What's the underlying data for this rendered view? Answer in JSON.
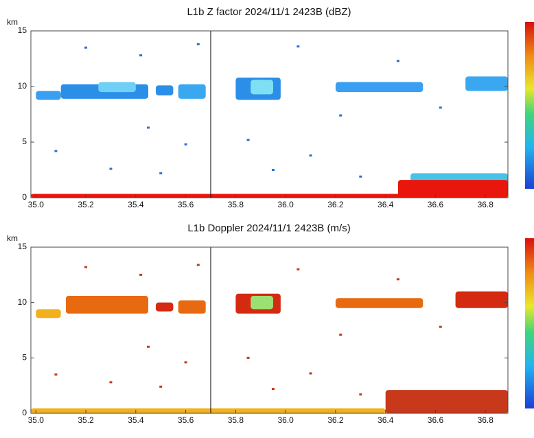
{
  "chart_data": [
    {
      "type": "heatmap",
      "title": "L1b Z factor 2024/11/1 2423B (dBZ)",
      "y_unit": "km",
      "xlim": [
        34.98,
        36.89
      ],
      "ylim": [
        0,
        15
      ],
      "xticks": [
        {
          "value": 35.0,
          "label": "35.0"
        },
        35.2,
        35.4,
        35.6,
        35.8,
        {
          "value": 36.0,
          "label": "36.0"
        },
        36.2,
        36.4,
        36.6,
        36.8
      ],
      "yticks": [
        0,
        5,
        10,
        15
      ],
      "marker_x": 35.7,
      "cells": {
        "x0": [
          35.0,
          35.1,
          35.25,
          35.48,
          35.57,
          35.8,
          35.86,
          36.2,
          36.72,
          34.98,
          36.5,
          36.45
        ],
        "x1": [
          35.1,
          35.45,
          35.4,
          35.55,
          35.68,
          35.98,
          35.95,
          36.55,
          36.89,
          36.5,
          36.89,
          36.89
        ],
        "y0": [
          8.8,
          8.9,
          9.5,
          9.2,
          8.9,
          8.8,
          9.3,
          9.5,
          9.6,
          0,
          0,
          0
        ],
        "y1": [
          9.6,
          10.2,
          10.4,
          10.1,
          10.2,
          10.8,
          10.6,
          10.4,
          10.9,
          0.35,
          2.2,
          1.6
        ],
        "color": [
          "#3a9ff0",
          "#2b8fe8",
          "#6fd0f5",
          "#2b8fe8",
          "#3aa8f0",
          "#2b8fe8",
          "#7fe0f5",
          "#3a9ff0",
          "#3aa8f0",
          "#e8160c",
          "#49c2e8",
          "#e8160c"
        ]
      },
      "points": {
        "x": [
          35.08,
          35.2,
          35.3,
          35.42,
          35.45,
          35.5,
          35.6,
          35.65,
          35.85,
          35.95,
          36.05,
          36.1,
          36.22,
          36.3,
          36.45,
          36.62
        ],
        "y": [
          4.2,
          13.5,
          2.6,
          12.8,
          6.3,
          2.2,
          4.8,
          13.8,
          5.2,
          2.5,
          13.6,
          3.8,
          7.4,
          1.9,
          12.3,
          8.1
        ],
        "color": "#2a6fd6"
      }
    },
    {
      "type": "heatmap",
      "title": "L1b Doppler 2024/11/1 2423B (m/s)",
      "y_unit": "km",
      "xlim": [
        34.98,
        36.89
      ],
      "ylim": [
        0,
        15
      ],
      "xticks": [
        {
          "value": 35.0,
          "label": "35.0"
        },
        35.2,
        35.4,
        35.6,
        35.8,
        {
          "value": 36.0,
          "label": "36.0"
        },
        36.2,
        36.4,
        36.6,
        36.8
      ],
      "yticks": [
        0,
        5,
        10,
        15
      ],
      "marker_x": 35.7,
      "cells": {
        "x0": [
          35.0,
          35.12,
          35.48,
          35.57,
          35.8,
          35.86,
          36.2,
          36.68,
          34.98,
          36.4
        ],
        "x1": [
          35.1,
          35.45,
          35.55,
          35.68,
          35.98,
          35.95,
          36.55,
          36.89,
          36.4,
          36.89
        ],
        "y0": [
          8.6,
          9.0,
          9.2,
          9.0,
          9.0,
          9.4,
          9.5,
          9.5,
          0,
          0
        ],
        "y1": [
          9.4,
          10.6,
          10.0,
          10.2,
          10.8,
          10.6,
          10.4,
          11.0,
          0.45,
          2.1
        ],
        "color": [
          "#f3b01e",
          "#e86a10",
          "#d42a12",
          "#e86a10",
          "#d42a12",
          "#9be070",
          "#e86a10",
          "#d42a12",
          "#f3b01e",
          "#c8381a"
        ]
      },
      "points": {
        "x": [
          35.08,
          35.2,
          35.3,
          35.42,
          35.45,
          35.5,
          35.6,
          35.65,
          35.85,
          35.95,
          36.05,
          36.1,
          36.22,
          36.3,
          36.45,
          36.62
        ],
        "y": [
          3.5,
          13.2,
          2.8,
          12.5,
          6.0,
          2.4,
          4.6,
          13.4,
          5.0,
          2.2,
          13.0,
          3.6,
          7.1,
          1.7,
          12.1,
          7.8
        ],
        "color": "#c33a1a"
      }
    }
  ]
}
